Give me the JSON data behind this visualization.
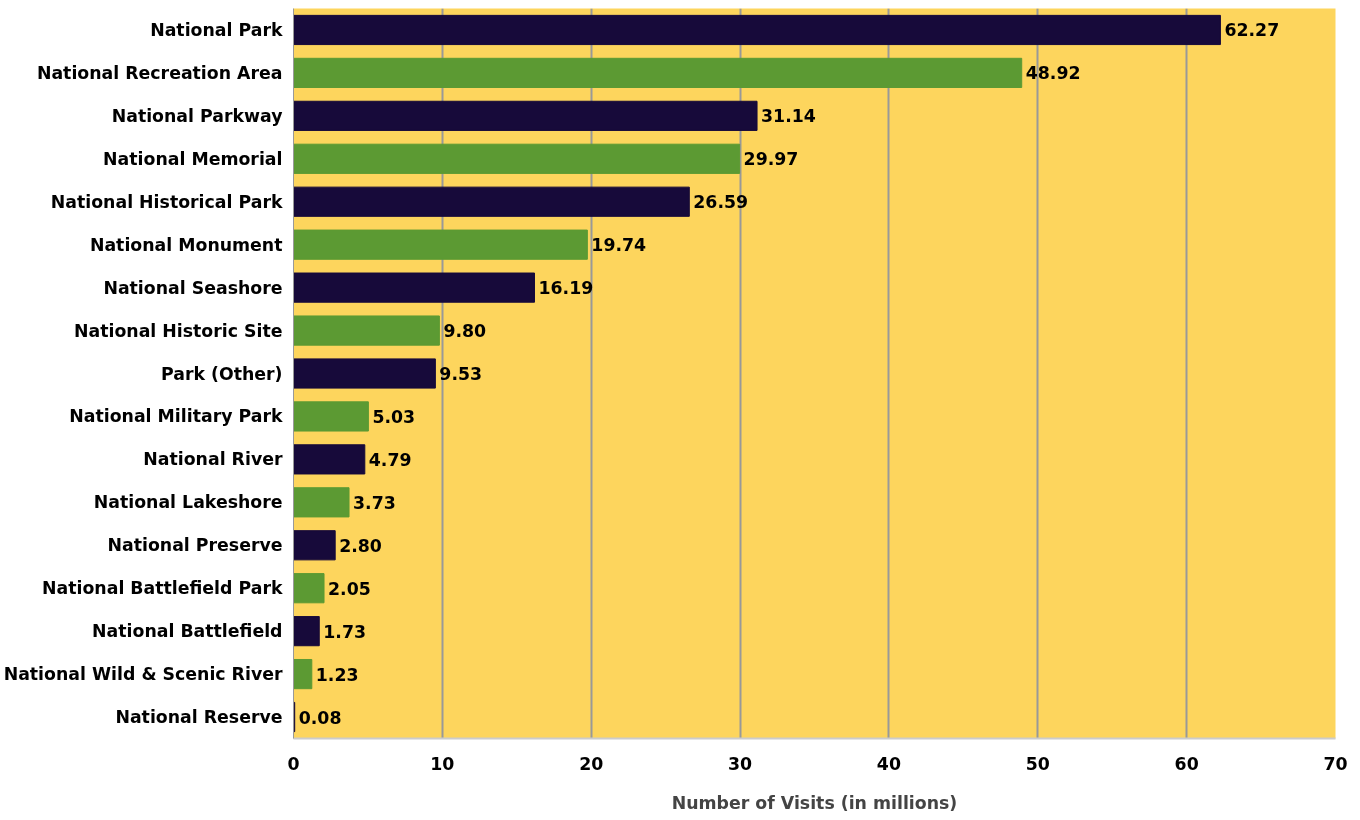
{
  "chart_data": {
    "type": "bar",
    "orientation": "horizontal",
    "xlabel": "Number of Visits (in millions)",
    "categories": [
      "National Park",
      "National Recreation Area",
      "National Parkway",
      "National Memorial",
      "National Historical Park",
      "National Monument",
      "National Seashore",
      "National Historic Site",
      "Park (Other)",
      "National Military Park",
      "National River",
      "National Lakeshore",
      "National Preserve",
      "National Battlefield Park",
      "National Battlefield",
      "National Wild & Scenic River",
      "National Reserve"
    ],
    "values": [
      62.27,
      48.92,
      31.14,
      29.97,
      26.59,
      19.74,
      16.19,
      9.8,
      9.53,
      5.03,
      4.79,
      3.73,
      2.8,
      2.05,
      1.73,
      1.23,
      0.08
    ],
    "value_labels": [
      "62.27",
      "48.92",
      "31.14",
      "29.97",
      "26.59",
      "19.74",
      "16.19",
      "9.80",
      "9.53",
      "5.03",
      "4.79",
      "3.73",
      "2.80",
      "2.05",
      "1.73",
      "1.23",
      "0.08"
    ],
    "colors": [
      "#170a3a",
      "#5c9a33",
      "#170a3a",
      "#5c9a33",
      "#170a3a",
      "#5c9a33",
      "#170a3a",
      "#5c9a33",
      "#170a3a",
      "#5c9a33",
      "#170a3a",
      "#5c9a33",
      "#170a3a",
      "#5c9a33",
      "#170a3a",
      "#5c9a33",
      "#170a3a"
    ],
    "xlim": [
      0,
      70
    ],
    "xticks": [
      0,
      10,
      20,
      30,
      40,
      50,
      60,
      70
    ],
    "grid": "x"
  }
}
